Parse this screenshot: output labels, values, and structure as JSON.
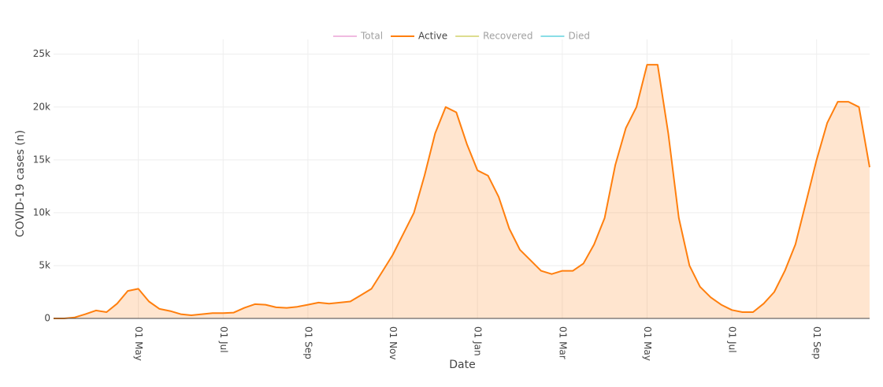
{
  "chart_data": {
    "type": "area",
    "xlabel": "Date",
    "ylabel": "COVID-19 cases (n)",
    "categories": [
      null,
      null,
      null,
      null,
      null,
      null,
      null,
      null,
      "01 May",
      null,
      null,
      null,
      null,
      null,
      null,
      null,
      "01 Jul",
      null,
      null,
      null,
      null,
      null,
      null,
      null,
      "01 Sep",
      null,
      null,
      null,
      null,
      null,
      null,
      null,
      "01 Nov",
      null,
      null,
      null,
      null,
      null,
      null,
      null,
      "01 Jan",
      null,
      null,
      null,
      null,
      null,
      null,
      null,
      "01 Mar",
      null,
      null,
      null,
      null,
      null,
      null,
      null,
      "01 May",
      null,
      null,
      null,
      null,
      null,
      null,
      null,
      "01 Jul",
      null,
      null,
      null,
      null,
      null,
      null,
      null,
      "01 Sep",
      null,
      null,
      null,
      null,
      null
    ],
    "series": [
      {
        "name": "Total",
        "color": "#e377c2",
        "visible": false
      },
      {
        "name": "Active",
        "color": "#ff7f0e",
        "visible": true,
        "values": [
          0,
          0,
          100,
          400,
          750,
          600,
          1400,
          2600,
          2800,
          1600,
          900,
          700,
          400,
          300,
          400,
          500,
          500,
          550,
          1000,
          1350,
          1300,
          1050,
          1000,
          1100,
          1300,
          1500,
          1400,
          1500,
          1600,
          2200,
          2800,
          4400,
          6000,
          8000,
          10000,
          13500,
          17500,
          20000,
          19500,
          16500,
          14000,
          13500,
          11500,
          8500,
          6500,
          5500,
          4500,
          4200,
          4500,
          4500,
          5200,
          7000,
          9500,
          14500,
          18000,
          20000,
          24000,
          24000,
          17500,
          9500,
          5000,
          3000,
          2000,
          1300,
          800,
          600,
          600,
          1400,
          2500,
          4500,
          7000,
          11000,
          15000,
          18500,
          20500,
          20500,
          20000,
          14300
        ]
      },
      {
        "name": "Recovered",
        "color": "#bcbd22",
        "visible": false
      },
      {
        "name": "Died",
        "color": "#17becf",
        "visible": false
      }
    ],
    "ylim": [
      0,
      25500
    ],
    "yticks": [
      0,
      {
        "value": 5000,
        "label": "5k"
      },
      {
        "value": 10000,
        "label": "10k"
      },
      {
        "value": 15000,
        "label": "15k"
      },
      {
        "value": 20000,
        "label": "20k"
      },
      {
        "value": 25000,
        "label": "25k"
      }
    ],
    "grid": true,
    "legend": "top"
  }
}
